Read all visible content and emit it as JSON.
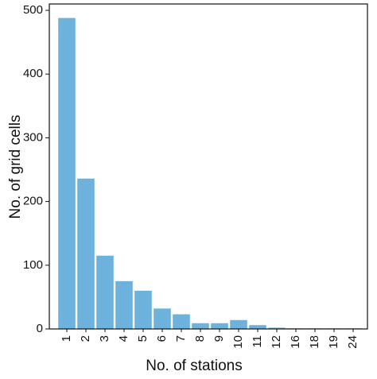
{
  "chart_data": {
    "type": "bar",
    "x_label": "No. of stations",
    "y_label": "No. of grid cells",
    "categories": [
      "1",
      "2",
      "3",
      "4",
      "5",
      "6",
      "7",
      "8",
      "9",
      "10",
      "11",
      "12",
      "16",
      "18",
      "19",
      "24"
    ],
    "values": [
      488,
      236,
      115,
      75,
      60,
      32,
      23,
      9,
      9,
      14,
      6,
      2,
      1,
      1,
      1,
      1
    ],
    "color": "#6cb2dc",
    "ylim": [
      0,
      510
    ],
    "yticks": [
      0,
      100,
      200,
      300,
      400,
      500
    ],
    "grid": false
  }
}
